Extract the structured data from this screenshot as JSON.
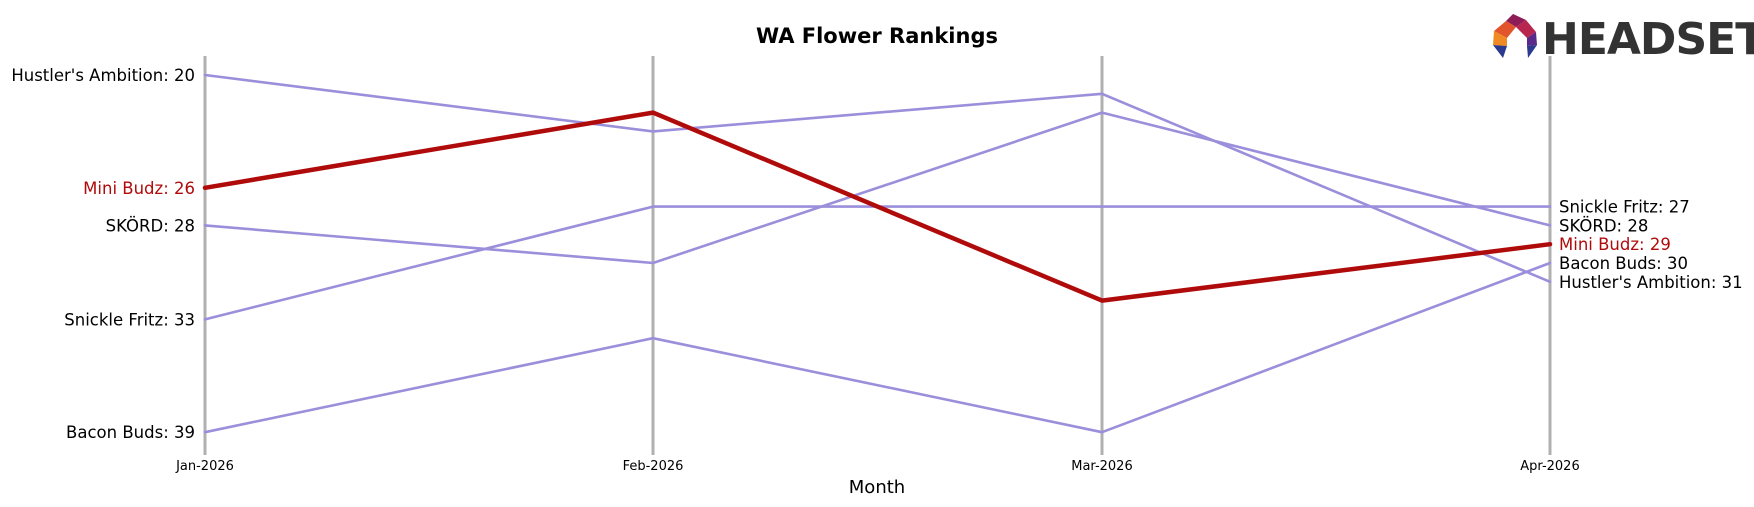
{
  "chart_data": {
    "type": "line",
    "title": "WA Flower Rankings",
    "xlabel": "Month",
    "ylabel": "",
    "x": [
      "Jan-2026",
      "Feb-2026",
      "Mar-2026",
      "Apr-2026"
    ],
    "y_inverted": true,
    "ylim": [
      19,
      40
    ],
    "grid": false,
    "legend": "none",
    "series": [
      {
        "name": "Hustler's Ambition",
        "values": [
          20,
          23,
          21,
          31
        ],
        "color": "#9b8fdb",
        "highlight": false
      },
      {
        "name": "SKÖRD",
        "values": [
          28,
          30,
          22,
          28
        ],
        "color": "#9b8fdb",
        "highlight": false
      },
      {
        "name": "Snickle Fritz",
        "values": [
          33,
          27,
          27,
          27
        ],
        "color": "#9b8fdb",
        "highlight": false
      },
      {
        "name": "Bacon Buds",
        "values": [
          39,
          34,
          39,
          30
        ],
        "color": "#9b8fdb",
        "highlight": false
      },
      {
        "name": "Mini Budz",
        "values": [
          26,
          22,
          32,
          29
        ],
        "color": "#b00b0b",
        "highlight": true
      }
    ],
    "left_labels": [
      {
        "text": "Hustler's Ambition: 20",
        "rank": 20,
        "highlight": false
      },
      {
        "text": "Mini Budz: 26",
        "rank": 26,
        "highlight": true
      },
      {
        "text": "SKÖRD: 28",
        "rank": 28,
        "highlight": false
      },
      {
        "text": "Snickle Fritz: 33",
        "rank": 33,
        "highlight": false
      },
      {
        "text": "Bacon Buds: 39",
        "rank": 39,
        "highlight": false
      }
    ],
    "right_labels": [
      {
        "text": "Snickle Fritz: 27",
        "rank": 27,
        "highlight": false
      },
      {
        "text": "SKÖRD: 28",
        "rank": 28,
        "highlight": false
      },
      {
        "text": "Mini Budz: 29",
        "rank": 29,
        "highlight": true
      },
      {
        "text": "Bacon Buds: 30",
        "rank": 30,
        "highlight": false
      },
      {
        "text": "Hustler's Ambition: 31",
        "rank": 31,
        "highlight": false
      }
    ],
    "colors": {
      "highlight": "#b00b0b",
      "default_line": "#9b8fdb",
      "gridline": "#b0b0b0",
      "label_default": "#000000"
    }
  },
  "logo": {
    "text": "HEADSET"
  }
}
